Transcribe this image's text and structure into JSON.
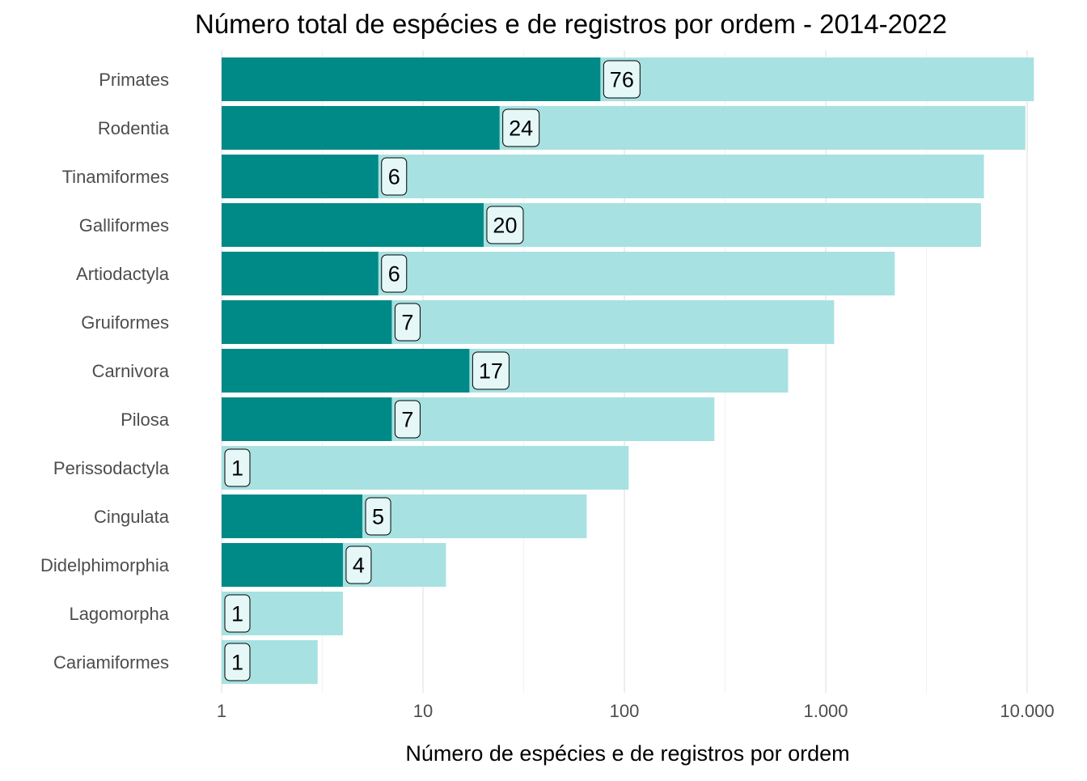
{
  "chart_data": {
    "type": "bar",
    "orientation": "horizontal",
    "title": "Número total de espécies e de registros por ordem - 2014-2022",
    "xlabel": "Número de espécies e de registros por ordem",
    "ylabel": "",
    "x_scale": "log10",
    "xlim": [
      1,
      11000
    ],
    "x_ticks": [
      1,
      10,
      100,
      1000,
      10000
    ],
    "x_tick_labels": [
      "1",
      "10",
      "100",
      "1.000",
      "10.000"
    ],
    "grid": "vertical major gridlines",
    "legend": "none",
    "categories": [
      "Primates",
      "Rodentia",
      "Tinamiformes",
      "Galliformes",
      "Artiodactyla",
      "Gruiformes",
      "Carnivora",
      "Pilosa",
      "Perissodactyla",
      "Cingulata",
      "Didelphimorphia",
      "Lagomorpha",
      "Cariamiformes"
    ],
    "series": [
      {
        "values": [
          10800,
          9800,
          6100,
          5900,
          2200,
          1100,
          650,
          280,
          105,
          65,
          13,
          4,
          3
        ],
        "color": "#a8e1e1"
      },
      {
        "values": [
          76,
          24,
          6,
          20,
          6,
          7,
          17,
          7,
          1,
          5,
          4,
          1,
          1
        ],
        "color": "#008a87",
        "labels": [
          "76",
          "24",
          "6",
          "20",
          "6",
          "7",
          "17",
          "7",
          "1",
          "5",
          "4",
          "1",
          "1"
        ]
      }
    ]
  }
}
